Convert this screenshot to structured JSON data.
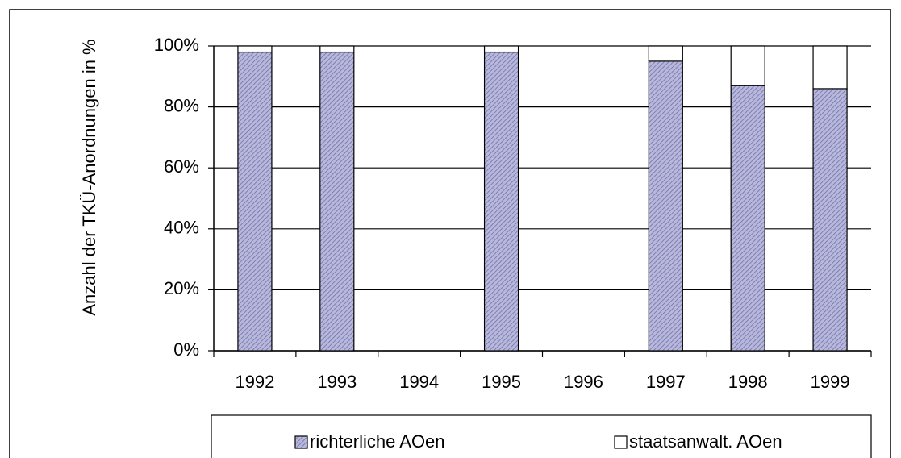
{
  "chart_data": {
    "type": "bar",
    "stacked": true,
    "y_axis_label": "Anzahl der TKÜ-Anordnungen in %",
    "categories": [
      "1992",
      "1993",
      "1994",
      "1995",
      "1996",
      "1997",
      "1998",
      "1999"
    ],
    "series": [
      {
        "name": "richterliche AOen",
        "color": "#9a9ac8",
        "values": [
          98,
          98,
          null,
          98,
          null,
          95,
          87,
          86
        ]
      },
      {
        "name": "staatsanwalt. AOen",
        "color": "#ffffff",
        "values": [
          2,
          2,
          null,
          2,
          null,
          5,
          13,
          14
        ]
      }
    ],
    "ylim": [
      0,
      100
    ],
    "yticks": [
      {
        "value": 0,
        "label": "0%"
      },
      {
        "value": 20,
        "label": "20%"
      },
      {
        "value": 40,
        "label": "40%"
      },
      {
        "value": 60,
        "label": "60%"
      },
      {
        "value": 80,
        "label": "80%"
      },
      {
        "value": 100,
        "label": "100%"
      }
    ],
    "grid": true,
    "legend": "bottom"
  }
}
